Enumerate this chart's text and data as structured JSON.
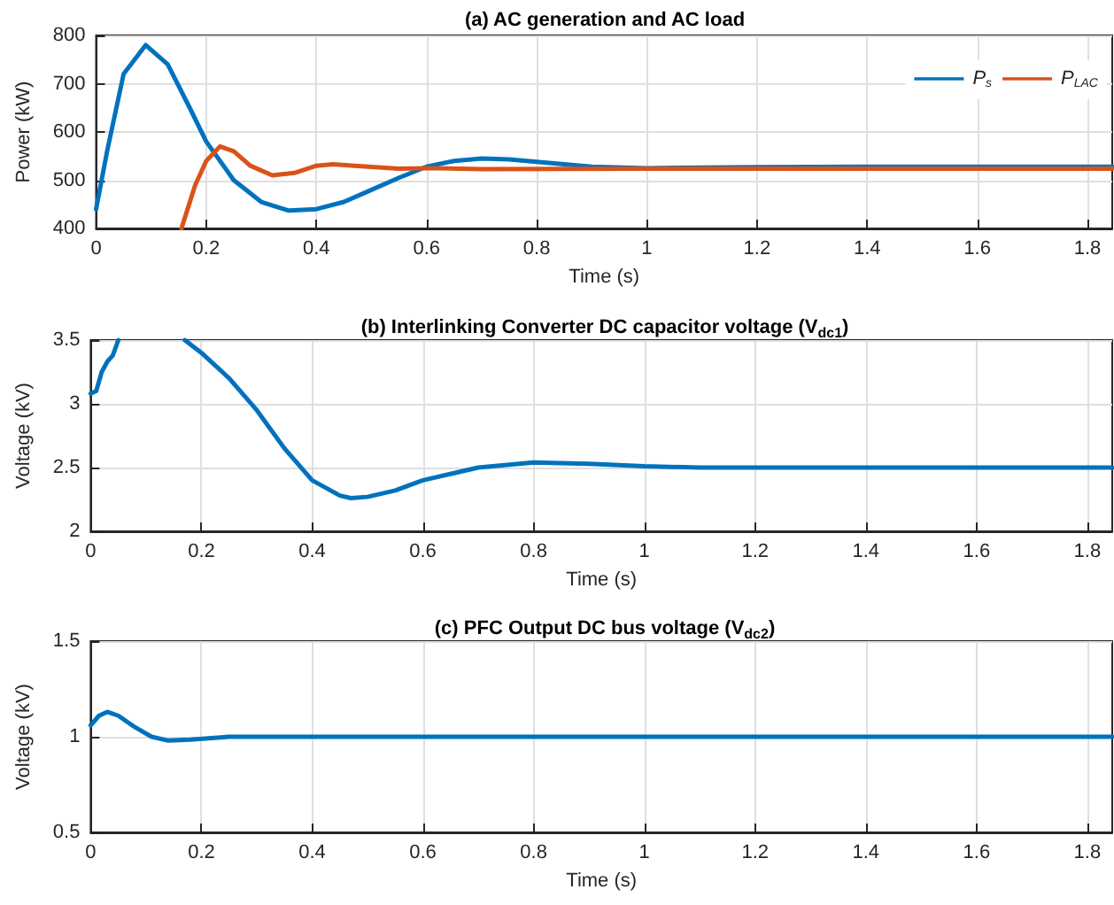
{
  "chart_data": [
    {
      "type": "line",
      "title": "(a) AC generation and AC load",
      "xlabel": "Time (s)",
      "ylabel": "Power (kW)",
      "xlim": [
        0,
        1.845
      ],
      "xticks": [
        0,
        0.2,
        0.4,
        0.6,
        0.8,
        1,
        1.2,
        1.4,
        1.6,
        1.8
      ],
      "ylim": [
        400,
        800
      ],
      "yticks": [
        400,
        500,
        600,
        700,
        800
      ],
      "grid": true,
      "legend": "top right",
      "marker": "none",
      "line_style": "solid",
      "series": [
        {
          "name": "P$_{s}$",
          "color": "#0072bd",
          "x": [
            0,
            0.02,
            0.05,
            0.09,
            0.13,
            0.17,
            0.2,
            0.25,
            0.3,
            0.35,
            0.4,
            0.45,
            0.5,
            0.55,
            0.6,
            0.65,
            0.7,
            0.75,
            0.8,
            0.9,
            1,
            1.2,
            1.4,
            1.6,
            1.845
          ],
          "values": [
            440,
            560,
            720,
            780,
            740,
            650,
            580,
            500,
            455,
            437,
            440,
            455,
            480,
            505,
            528,
            540,
            545,
            543,
            538,
            528,
            525,
            527,
            528,
            528,
            528
          ]
        },
        {
          "name": "P$_{LAC}$",
          "color": "#d95319",
          "x": [
            0.155,
            0.18,
            0.2,
            0.225,
            0.25,
            0.28,
            0.32,
            0.36,
            0.4,
            0.43,
            0.47,
            0.55,
            0.6,
            0.7,
            1,
            1.845
          ],
          "values": [
            400,
            490,
            540,
            570,
            560,
            530,
            510,
            515,
            530,
            533,
            530,
            524,
            525,
            523,
            524,
            524
          ]
        }
      ]
    },
    {
      "type": "line",
      "title": "(b) Interlinking Converter DC capacitor voltage (V$_{dc1}$)",
      "xlabel": "Time (s)",
      "ylabel": "Voltage (kV)",
      "xlim": [
        0,
        1.845
      ],
      "xticks": [
        0,
        0.2,
        0.4,
        0.6,
        0.8,
        1,
        1.2,
        1.4,
        1.6,
        1.8
      ],
      "ylim": [
        2,
        3.5
      ],
      "yticks": [
        2,
        2.5,
        3,
        3.5
      ],
      "grid": true,
      "marker": "none",
      "line_style": "solid",
      "series": [
        {
          "color": "#0072bd",
          "x": [
            0,
            0.01,
            0.02,
            0.03,
            0.04,
            0.05,
            0.1,
            0.17,
            0.2,
            0.25,
            0.3,
            0.35,
            0.4,
            0.45,
            0.47,
            0.5,
            0.55,
            0.6,
            0.7,
            0.8,
            0.9,
            1,
            1.1,
            1.4,
            1.845
          ],
          "values": [
            3.08,
            3.1,
            3.25,
            3.33,
            3.38,
            3.5,
            null,
            3.5,
            3.4,
            3.2,
            2.95,
            2.65,
            2.4,
            2.28,
            2.26,
            2.27,
            2.32,
            2.4,
            2.5,
            2.54,
            2.53,
            2.51,
            2.5,
            2.5,
            2.5
          ]
        }
      ]
    },
    {
      "type": "line",
      "title": "(c) PFC Output DC bus voltage (V$_{dc2}$)",
      "xlabel": "Time (s)",
      "ylabel": "Voltage (kV)",
      "xlim": [
        0,
        1.845
      ],
      "xticks": [
        0,
        0.2,
        0.4,
        0.6,
        0.8,
        1,
        1.2,
        1.4,
        1.6,
        1.8
      ],
      "ylim": [
        0.5,
        1.5
      ],
      "yticks": [
        0.5,
        1,
        1.5
      ],
      "grid": true,
      "marker": "none",
      "line_style": "solid",
      "series": [
        {
          "color": "#0072bd",
          "x": [
            0,
            0.015,
            0.03,
            0.05,
            0.08,
            0.11,
            0.14,
            0.18,
            0.25,
            0.3,
            1.845
          ],
          "values": [
            1.06,
            1.11,
            1.13,
            1.11,
            1.05,
            1.0,
            0.98,
            0.985,
            1.0,
            1.0,
            1.0
          ]
        }
      ]
    }
  ]
}
